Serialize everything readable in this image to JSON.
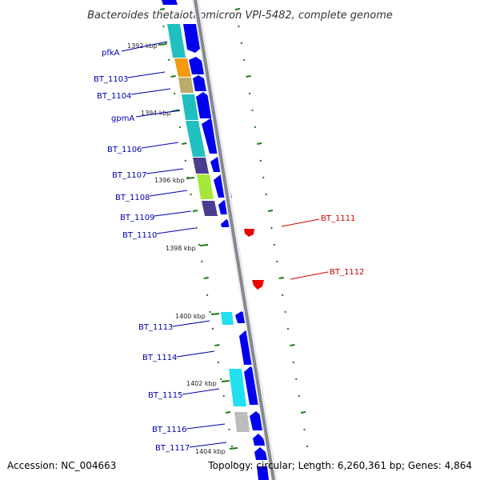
{
  "title": "Bacteroides thetaiotaomicron VPI-5482, complete genome",
  "accession_label": "Accession: NC_004663",
  "summary_label": "Topology: circular; Length: 6,260,361 bp; Genes: 4,864",
  "colors": {
    "forward_strand_gene": "#0000ee",
    "reverse_strand_gene": "#ee0000",
    "label_forward": "#0000aa",
    "label_reverse": "#cc0000",
    "backbone": "#888888",
    "tick_mark": "#1a7a1a"
  },
  "kbp_markers": [
    "1392 kbp",
    "1394 kbp",
    "1396 kbp",
    "1398 kbp",
    "1400 kbp",
    "1402 kbp",
    "1404 kbp"
  ],
  "genes": [
    {
      "label": "pfkA",
      "strand": "forward"
    },
    {
      "label": "BT_1103",
      "strand": "forward"
    },
    {
      "label": "BT_1104",
      "strand": "forward"
    },
    {
      "label": "gpmA",
      "strand": "forward"
    },
    {
      "label": "BT_1106",
      "strand": "forward"
    },
    {
      "label": "BT_1107",
      "strand": "forward"
    },
    {
      "label": "BT_1108",
      "strand": "forward"
    },
    {
      "label": "BT_1109",
      "strand": "forward"
    },
    {
      "label": "BT_1110",
      "strand": "forward"
    },
    {
      "label": "BT_1111",
      "strand": "reverse"
    },
    {
      "label": "BT_1112",
      "strand": "reverse"
    },
    {
      "label": "BT_1113",
      "strand": "forward"
    },
    {
      "label": "BT_1114",
      "strand": "forward"
    },
    {
      "label": "BT_1115",
      "strand": "forward"
    },
    {
      "label": "BT_1116",
      "strand": "forward"
    },
    {
      "label": "BT_1117",
      "strand": "forward"
    }
  ]
}
